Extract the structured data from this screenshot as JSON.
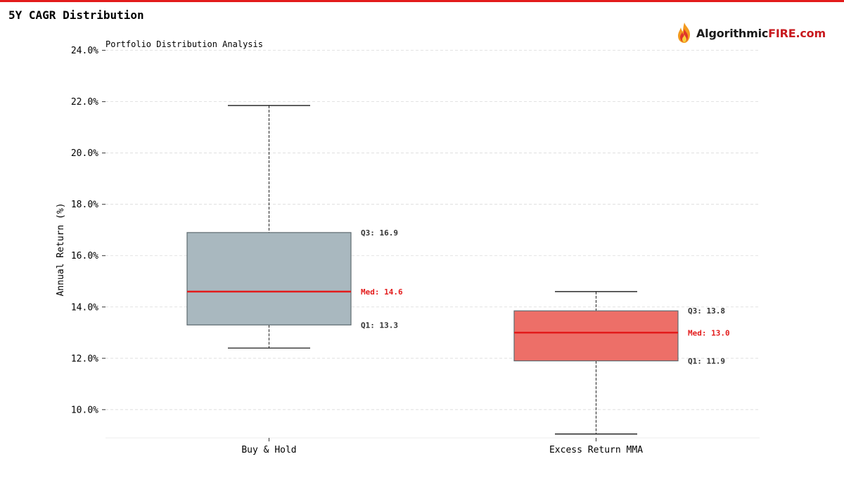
{
  "page": {
    "title": "5Y CAGR Distribution",
    "accent": "#e31b1b"
  },
  "brand": {
    "name_part1": "Algorithmic",
    "name_part2": "FIRE.com",
    "logo_icon": "flame-icon",
    "color_part1": "#1a1a1a",
    "color_part2": "#c8191e"
  },
  "chart_data": {
    "type": "boxplot",
    "title": "Portfolio Distribution Analysis",
    "xlabel": "",
    "ylabel": "Annual Return (%)",
    "ylim": [
      8.9,
      24.4
    ],
    "yticks": [
      10,
      12,
      14,
      16,
      18,
      20,
      22,
      24
    ],
    "ytick_labels": [
      "10.0%",
      "12.0%",
      "14.0%",
      "16.0%",
      "18.0%",
      "20.0%",
      "22.0%",
      "24.0%"
    ],
    "grid": true,
    "categories": [
      "Buy & Hold",
      "Excess Return MMA"
    ],
    "series": [
      {
        "name": "Buy & Hold",
        "whisker_low": 12.4,
        "q1": 13.3,
        "median": 14.6,
        "q3": 16.9,
        "whisker_high": 21.85,
        "color": "#a9b8bf",
        "q1_label": "Q1: 13.3",
        "median_label": "Med: 14.6",
        "q3_label": "Q3: 16.9"
      },
      {
        "name": "Excess Return MMA",
        "whisker_low": 9.05,
        "q1": 11.9,
        "median": 13.0,
        "q3": 13.85,
        "whisker_high": 14.6,
        "color": "#ed6f68",
        "q1_label": "Q1: 11.9",
        "median_label": "Med: 13.0",
        "q3_label": "Q3: 13.8"
      }
    ],
    "median_color": "#e31b1b"
  }
}
